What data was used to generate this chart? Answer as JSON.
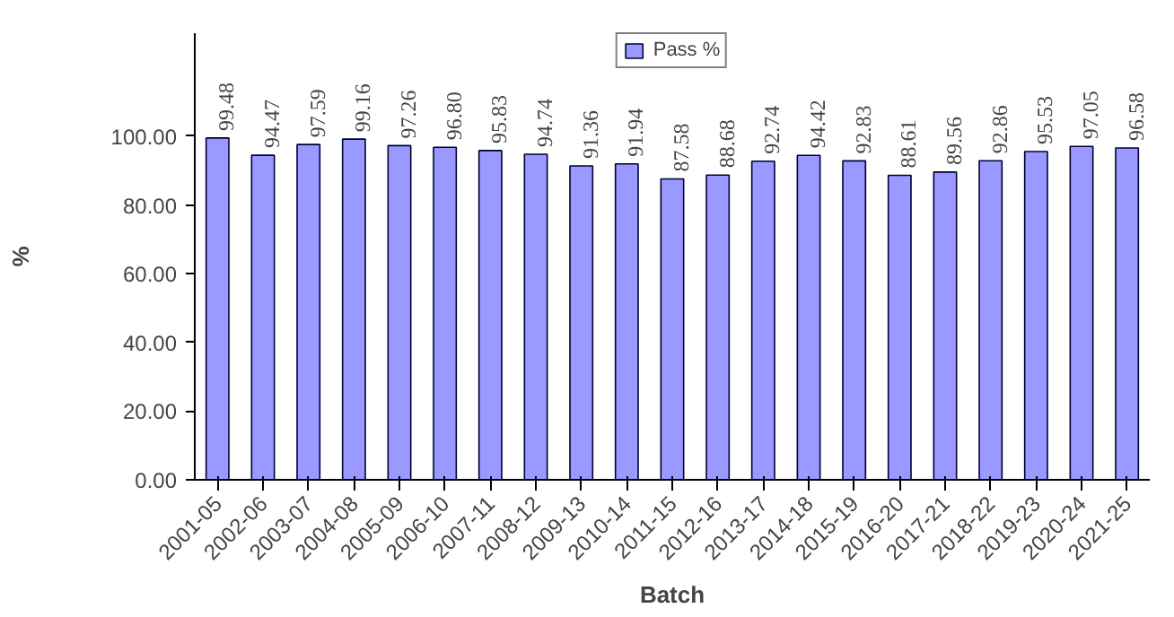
{
  "chart_data": {
    "type": "bar",
    "xlabel": "Batch",
    "ylabel": "%",
    "categories": [
      "2001-05",
      "2002-06",
      "2003-07",
      "2004-08",
      "2005-09",
      "2006-10",
      "2007-11",
      "2008-12",
      "2009-13",
      "2010-14",
      "2011-15",
      "2012-16",
      "2013-17",
      "2014-18",
      "2015-19",
      "2016-20",
      "2017-21",
      "2018-22",
      "2019-23",
      "2020-24",
      "2021-25"
    ],
    "series": [
      {
        "name": "Pass %",
        "color": "#9999ff",
        "values": [
          99.48,
          94.47,
          97.59,
          99.16,
          97.26,
          96.8,
          95.83,
          94.74,
          91.36,
          91.94,
          87.58,
          88.68,
          92.74,
          94.42,
          92.83,
          88.61,
          89.56,
          92.86,
          95.53,
          97.05,
          96.58
        ]
      }
    ],
    "value_labels": [
      "99.48",
      "94.47",
      "97.59",
      "99.16",
      "97.26",
      "96.80",
      "95.83",
      "94.74",
      "91.36",
      "91.94",
      "87.58",
      "88.68",
      "92.74",
      "94.42",
      "92.83",
      "88.61",
      "89.56",
      "92.86",
      "95.53",
      "97.05",
      "96.58"
    ],
    "ylim": [
      0,
      130
    ],
    "yticks": [
      {
        "value": 0,
        "label": "0.00"
      },
      {
        "value": 20,
        "label": "20.00"
      },
      {
        "value": 40,
        "label": "40.00"
      },
      {
        "value": 60,
        "label": "60.00"
      },
      {
        "value": 80,
        "label": "80.00"
      },
      {
        "value": 100,
        "label": "100.00"
      }
    ],
    "grid": false,
    "legend": "top"
  }
}
